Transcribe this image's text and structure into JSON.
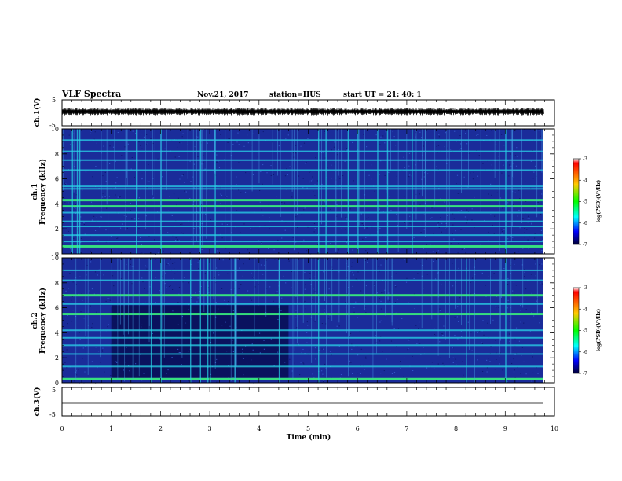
{
  "header": {
    "title": "VLF Spectra",
    "date": "Nov.21, 2017",
    "station": "station=HUS",
    "start": "start  UT =  21: 40: 1"
  },
  "colors": {
    "spectrogram_background": "#1a2c9a",
    "spectrogram_dark": "#050a4a",
    "spectrogram_line": "#29d6e8",
    "spectrogram_hot": "#38e878",
    "waveform": "#000000"
  },
  "colorbar": {
    "label": "log(PSD)(V²/Hz)",
    "ticks": [
      "-3",
      "-4",
      "-5",
      "-6",
      "-7"
    ],
    "stops": [
      "#ff0000",
      "#ffcc00",
      "#00ff00",
      "#00ffff",
      "#0000ff",
      "#000033"
    ]
  },
  "chart_data": [
    {
      "type": "line",
      "panel": "ch1-waveform",
      "ylabel": "ch.1(V)",
      "ylim": [
        -5,
        5
      ],
      "yticks": [
        "5",
        "-5"
      ],
      "xlim": [
        0,
        10
      ],
      "series": [
        {
          "values_description_visible": "",
          "baseline": 0,
          "amplitude": 0.6
        }
      ]
    },
    {
      "type": "heatmap",
      "panel": "ch1-spectrogram",
      "ylabel": "ch.1\nFrequency (kHz)",
      "ylabel_line1": "ch.1",
      "ylabel_line2": "Frequency (kHz)",
      "ylim": [
        0,
        10
      ],
      "yticks": [
        "10",
        "8",
        "6",
        "4",
        "2",
        "0"
      ],
      "xlim": [
        0,
        10
      ],
      "bands_khz": [
        0.6,
        1.0,
        1.5,
        2.2,
        2.6,
        3.3,
        3.8,
        4.3,
        5.2,
        5.4,
        6.7,
        7.5,
        8.2,
        9.1
      ],
      "bright_bands_khz": [
        3.8,
        4.3,
        0.6
      ],
      "burst_times_min": [
        0.2,
        0.3,
        0.35,
        1.5,
        2.0,
        2.8,
        3.1,
        5.2,
        5.35,
        5.8,
        6.0,
        6.4,
        6.6,
        7.1,
        9.0
      ]
    },
    {
      "type": "heatmap",
      "panel": "ch2-spectrogram",
      "ylabel_line1": "ch.2",
      "ylabel_line2": "Frequency (kHz)",
      "ylim": [
        0,
        10
      ],
      "yticks": [
        "10",
        "8",
        "6",
        "4",
        "2",
        "0"
      ],
      "xlim": [
        0,
        10
      ],
      "bands_khz": [
        0.3,
        1.3,
        2.3,
        3.0,
        3.6,
        4.2,
        5.5,
        6.3,
        7.0,
        8.2,
        9.0
      ],
      "bright_bands_khz": [
        5.5,
        0.3,
        7.0
      ],
      "burst_times_min": [
        1.8,
        2.0,
        2.6,
        2.8,
        2.95,
        3.0,
        3.5,
        4.4,
        5.2,
        8.2,
        9.0
      ]
    },
    {
      "type": "line",
      "panel": "ch3-waveform",
      "ylabel": "ch.3(V)",
      "ylim": [
        -5,
        5
      ],
      "yticks": [
        "5",
        "-5"
      ],
      "xlim": [
        0,
        10
      ],
      "series": [
        {
          "baseline": 0,
          "amplitude": 0
        }
      ]
    }
  ],
  "xaxis": {
    "label": "Time  (min)",
    "ticks": [
      "0",
      "1",
      "2",
      "3",
      "4",
      "5",
      "6",
      "7",
      "8",
      "9",
      "10"
    ]
  }
}
